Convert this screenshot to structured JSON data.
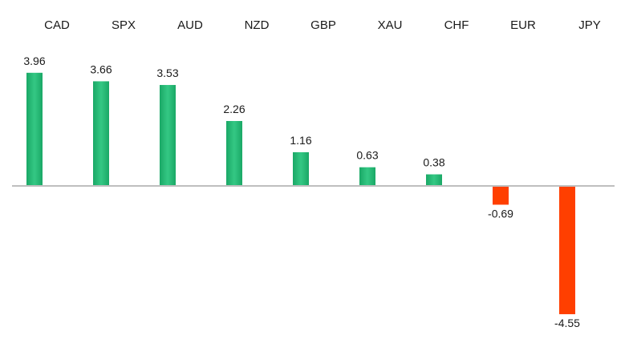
{
  "chart_data": {
    "type": "bar",
    "title": "",
    "xlabel": "",
    "ylabel": "",
    "categories": [
      "CAD",
      "SPX",
      "AUD",
      "NZD",
      "GBP",
      "XAU",
      "CHF",
      "EUR",
      "JPY"
    ],
    "values": [
      3.96,
      3.66,
      3.53,
      2.26,
      1.16,
      0.63,
      0.38,
      -0.69,
      -4.55
    ],
    "value_labels": [
      "3.96",
      "3.66",
      "3.53",
      "2.26",
      "1.16",
      "0.63",
      "0.38",
      "-0.69",
      "-4.55"
    ],
    "ylim": [
      -4.55,
      3.96
    ],
    "category_labels_position": "top",
    "grid": false,
    "legend": "none",
    "colors": {
      "positive": "#1aa866",
      "positive_highlight": "#34c884",
      "negative": "#ff3f00",
      "axis": "#bfbfbf"
    }
  }
}
